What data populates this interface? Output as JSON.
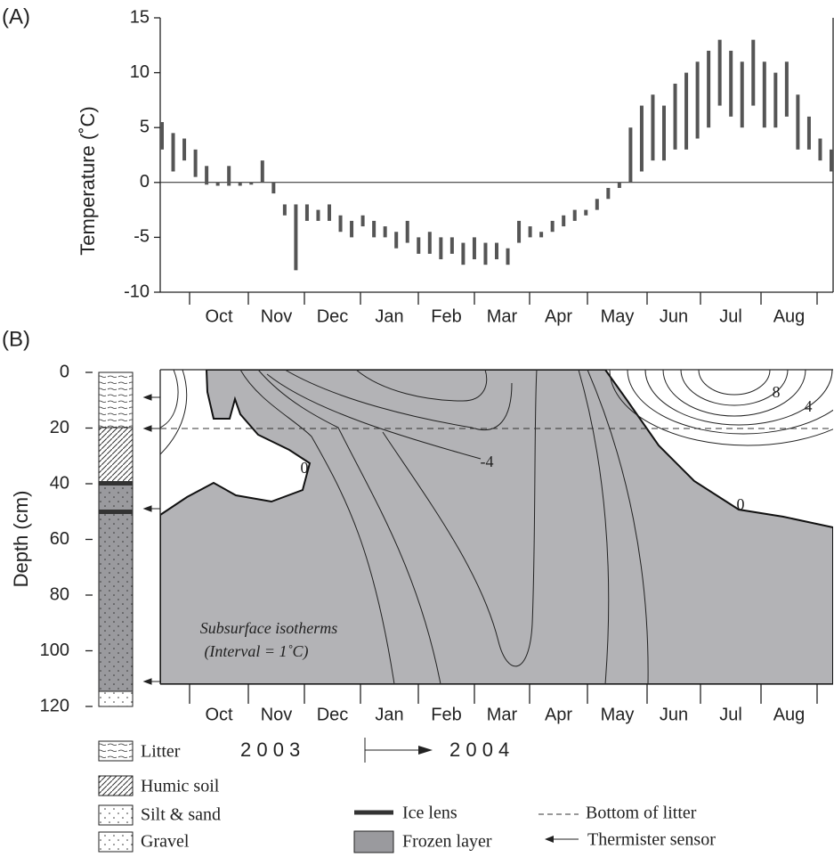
{
  "chart_data": [
    {
      "type": "range-bar",
      "panel_label": "(A)",
      "y_label": "Temperature (˚C)",
      "categories": [
        "Oct",
        "Nov",
        "Dec",
        "Jan",
        "Feb",
        "Mar",
        "Apr",
        "May",
        "Jun",
        "Jul",
        "Aug"
      ],
      "high": [
        5.5,
        4.5,
        4,
        3,
        1.5,
        0,
        1.5,
        0,
        0,
        2,
        0,
        -2,
        -2,
        -2,
        -2.5,
        -2,
        -3,
        -3.5,
        -3,
        -3.5,
        -4,
        -4.5,
        -3.5,
        -5,
        -4.5,
        -5,
        -5,
        -5.5,
        -5,
        -5.5,
        -5.5,
        -6,
        -3.5,
        -4,
        -4.5,
        -3.5,
        -3,
        -2.5,
        -2.5,
        -1.5,
        -0.5,
        0,
        5,
        7,
        8,
        7,
        9,
        10,
        11,
        12,
        13,
        12,
        11,
        13,
        11,
        10,
        11,
        8,
        6,
        4,
        3
      ],
      "low": [
        3,
        1,
        2,
        0.5,
        -0.2,
        -0.3,
        -0.3,
        -0.3,
        -0.2,
        0,
        -1,
        -3,
        -8,
        -3.5,
        -3.5,
        -3.5,
        -4.5,
        -5,
        -4,
        -5,
        -5,
        -6,
        -5.5,
        -6.5,
        -6.5,
        -7,
        -6.5,
        -7.5,
        -7,
        -7.5,
        -7,
        -7.5,
        -5.5,
        -5,
        -5,
        -4.5,
        -4,
        -3.5,
        -3,
        -2.5,
        -1.5,
        -0.5,
        0,
        1,
        2,
        2,
        3,
        3,
        4,
        5,
        7,
        6,
        5,
        7,
        5,
        5,
        6,
        3,
        3,
        2,
        1
      ],
      "color": "#555555",
      "ylim": [
        -10,
        15
      ],
      "yticks": [
        -10,
        -5,
        0,
        5,
        10,
        15
      ]
    },
    {
      "type": "contour",
      "panel_label": "(B)",
      "y_label": "Depth  (cm)",
      "categories": [
        "Oct",
        "Nov",
        "Dec",
        "Jan",
        "Feb",
        "Mar",
        "Apr",
        "May",
        "Jun",
        "Jul",
        "Aug"
      ],
      "ylim": [
        0,
        120
      ],
      "yticks": [
        0,
        20,
        40,
        60,
        80,
        100,
        120
      ],
      "color": "#b3b3b6",
      "contour_labels": [
        "0",
        "-4",
        "8",
        "4",
        "0"
      ],
      "annotation": "Subsurface isotherms",
      "annotation_sub": "(Interval = 1˚C)",
      "years": [
        "2 0 0 3",
        "2 0 0 4"
      ],
      "legend": [
        "Litter",
        "Humic soil",
        "Silt & sand",
        "Gravel",
        "Ice lens",
        "Frozen layer",
        "Bottom of litter",
        "Thermister sensor"
      ]
    }
  ]
}
